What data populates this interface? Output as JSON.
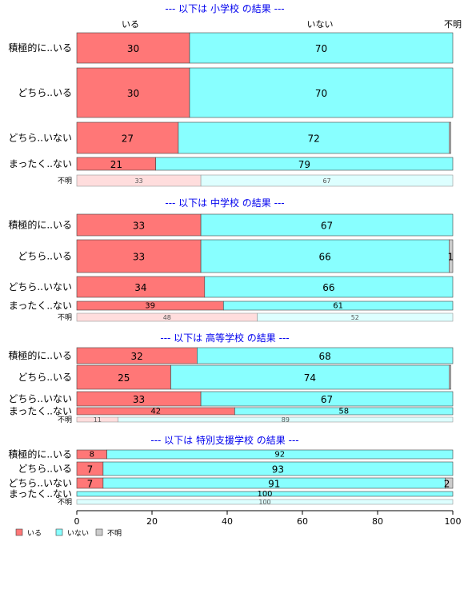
{
  "chart_data": {
    "type": "bar",
    "orientation": "horizontal",
    "stacked": true,
    "column_headers": [
      "いる",
      "いない",
      "不明"
    ],
    "categories": [
      "積極的に..いる",
      "どちら..いる",
      "どちら..いない",
      "まったく..ない",
      "不明"
    ],
    "xlim": [
      0,
      100
    ],
    "xticks": [
      0,
      20,
      40,
      60,
      80,
      100
    ],
    "legend": {
      "position": "bottom-left",
      "entries": [
        "いる",
        "いない",
        "不明"
      ]
    },
    "colors": {
      "いる": "#ff7777",
      "いない": "#88ffff",
      "不明": "#cccccc",
      "いる_faded": "#ffdddd",
      "いない_faded": "#ddffff"
    },
    "panels": [
      {
        "title": "--- 以下は 小学校 の結果 ---",
        "rows": [
          {
            "label": "積極的に..いる",
            "values": [
              30,
              70,
              0
            ],
            "labels": [
              "30",
              "70",
              ""
            ]
          },
          {
            "label": "どちら..いる",
            "values": [
              30,
              70,
              0
            ],
            "labels": [
              "30",
              "70",
              ""
            ]
          },
          {
            "label": "どちら..いない",
            "values": [
              27,
              72,
              0.5
            ],
            "labels": [
              "27",
              "72",
              ""
            ]
          },
          {
            "label": "まったく..ない",
            "values": [
              21,
              79,
              0
            ],
            "labels": [
              "21",
              "79",
              ""
            ]
          },
          {
            "label": "不明",
            "values": [
              33,
              67,
              0
            ],
            "labels": [
              "33",
              "67",
              ""
            ]
          }
        ]
      },
      {
        "title": "--- 以下は 中学校 の結果 ---",
        "rows": [
          {
            "label": "積極的に..いる",
            "values": [
              33,
              67,
              0
            ],
            "labels": [
              "33",
              "67",
              ""
            ]
          },
          {
            "label": "どちら..いる",
            "values": [
              33,
              66,
              1
            ],
            "labels": [
              "33",
              "66",
              "1"
            ]
          },
          {
            "label": "どちら..いない",
            "values": [
              34,
              66,
              0
            ],
            "labels": [
              "34",
              "66",
              ""
            ]
          },
          {
            "label": "まったく..ない",
            "values": [
              39,
              61,
              0
            ],
            "labels": [
              "39",
              "61",
              ""
            ]
          },
          {
            "label": "不明",
            "values": [
              48,
              52,
              0
            ],
            "labels": [
              "48",
              "52",
              ""
            ]
          }
        ]
      },
      {
        "title": "--- 以下は 高等学校 の結果 ---",
        "rows": [
          {
            "label": "積極的に..いる",
            "values": [
              32,
              68,
              0
            ],
            "labels": [
              "32",
              "68",
              ""
            ]
          },
          {
            "label": "どちら..いる",
            "values": [
              25,
              74,
              0.5
            ],
            "labels": [
              "25",
              "74",
              ""
            ]
          },
          {
            "label": "どちら..いない",
            "values": [
              33,
              67,
              0
            ],
            "labels": [
              "33",
              "67",
              ""
            ]
          },
          {
            "label": "まったく..ない",
            "values": [
              42,
              58,
              0
            ],
            "labels": [
              "42",
              "58",
              ""
            ]
          },
          {
            "label": "不明",
            "values": [
              11,
              89,
              0
            ],
            "labels": [
              "11",
              "89",
              ""
            ]
          }
        ]
      },
      {
        "title": "--- 以下は 特別支援学校 の結果 ---",
        "rows": [
          {
            "label": "積極的に..いる",
            "values": [
              8,
              92,
              0
            ],
            "labels": [
              "8",
              "92",
              ""
            ]
          },
          {
            "label": "どちら..いる",
            "values": [
              7,
              93,
              0
            ],
            "labels": [
              "7",
              "93",
              ""
            ]
          },
          {
            "label": "どちら..いない",
            "values": [
              7,
              91,
              2
            ],
            "labels": [
              "7",
              "91",
              "2"
            ]
          },
          {
            "label": "まったく..ない",
            "values": [
              0,
              100,
              0
            ],
            "labels": [
              "",
              "100",
              ""
            ]
          },
          {
            "label": "不明",
            "values": [
              0,
              100,
              0
            ],
            "labels": [
              "",
              "100",
              ""
            ]
          }
        ]
      }
    ]
  }
}
